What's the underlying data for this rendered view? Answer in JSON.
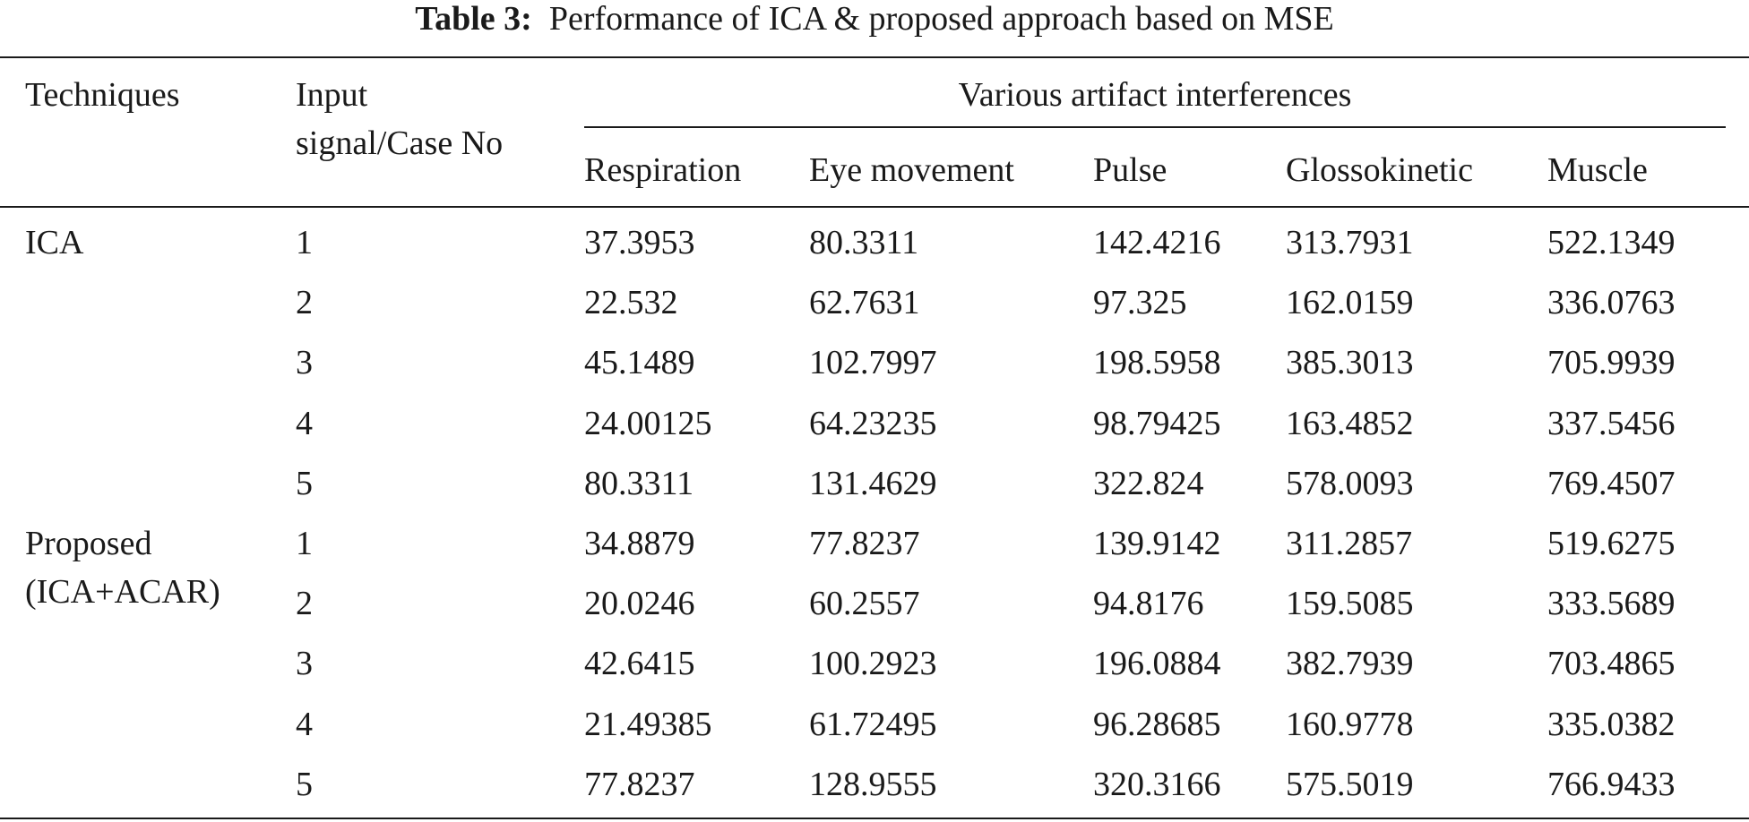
{
  "table": {
    "caption_label": "Table 3:",
    "caption_text": "Performance of ICA & proposed approach based on MSE",
    "headers": {
      "techniques": "Techniques",
      "input_line1": "Input",
      "input_line2": "signal/Case No",
      "group": "Various artifact interferences",
      "columns": [
        "Respiration",
        "Eye movement",
        "Pulse",
        "Glossokinetic",
        "Muscle"
      ]
    },
    "techniques": [
      {
        "name_lines": [
          "ICA"
        ]
      },
      {
        "name_lines": [
          "Proposed",
          "(ICA+ACAR)"
        ]
      }
    ],
    "rows": [
      {
        "case": "1",
        "values": [
          "37.3953",
          "80.3311",
          "142.4216",
          "313.7931",
          "522.1349"
        ]
      },
      {
        "case": "2",
        "values": [
          "22.532",
          "62.7631",
          "97.325",
          "162.0159",
          "336.0763"
        ]
      },
      {
        "case": "3",
        "values": [
          "45.1489",
          "102.7997",
          "198.5958",
          "385.3013",
          "705.9939"
        ]
      },
      {
        "case": "4",
        "values": [
          "24.00125",
          "64.23235",
          "98.79425",
          "163.4852",
          "337.5456"
        ]
      },
      {
        "case": "5",
        "values": [
          "80.3311",
          "131.4629",
          "322.824",
          "578.0093",
          "769.4507"
        ]
      },
      {
        "case": "1",
        "values": [
          "34.8879",
          "77.8237",
          "139.9142",
          "311.2857",
          "519.6275"
        ]
      },
      {
        "case": "2",
        "values": [
          "20.0246",
          "60.2557",
          "94.8176",
          "159.5085",
          "333.5689"
        ]
      },
      {
        "case": "3",
        "values": [
          "42.6415",
          "100.2923",
          "196.0884",
          "382.7939",
          "703.4865"
        ]
      },
      {
        "case": "4",
        "values": [
          "21.49385",
          "61.72495",
          "96.28685",
          "160.9778",
          "335.0382"
        ]
      },
      {
        "case": "5",
        "values": [
          "77.8237",
          "128.9555",
          "320.3166",
          "575.5019",
          "766.9433"
        ]
      }
    ]
  }
}
